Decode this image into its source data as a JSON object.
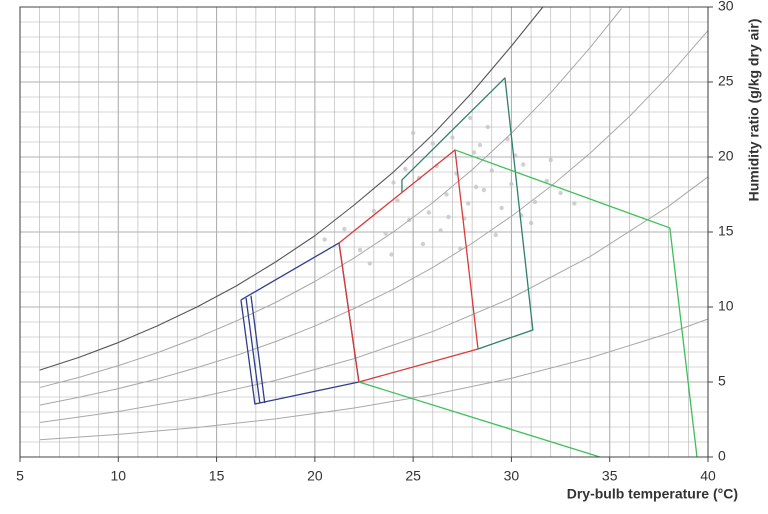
{
  "chart_data": {
    "type": "line",
    "x_label": "Dry-bulb temperature (°C)",
    "y_label": "Humidity ratio (g/kg dry air)",
    "xlim": [
      5,
      40
    ],
    "xticks": [
      5,
      10,
      15,
      20,
      25,
      30,
      35,
      40
    ],
    "ylim": [
      0,
      30
    ],
    "yticks": [
      0,
      5,
      10,
      15,
      20,
      25,
      30
    ],
    "grid": true,
    "minor_grid": 1,
    "grid_color": "#b0b0b0",
    "series": [
      {
        "mode": "markers",
        "color": "#c4c4c4",
        "x": [
          20.5,
          21.5,
          22.3,
          23.0,
          23.6,
          24.2,
          24.8,
          25.3,
          25.8,
          26.2,
          26.7,
          27.2,
          27.6,
          28.1,
          28.6,
          29.0,
          29.5,
          30.0,
          30.6,
          31.2,
          31.8,
          32.5,
          33.2,
          22.8,
          23.9,
          24.6,
          25.5,
          26.4,
          27.0,
          27.8,
          28.4,
          29.2,
          30.2,
          31.0,
          32.0,
          26.0,
          27.4,
          28.8,
          29.8,
          25.0,
          26.8,
          28.2,
          30.5,
          24.0,
          27.9
        ],
        "values": [
          14.5,
          15.2,
          13.8,
          16.4,
          14.9,
          17.1,
          15.8,
          18.6,
          16.3,
          19.4,
          17.5,
          18.9,
          15.9,
          20.3,
          17.8,
          19.1,
          16.6,
          18.2,
          19.5,
          17.0,
          18.4,
          17.6,
          16.9,
          12.9,
          13.5,
          19.2,
          14.2,
          15.1,
          21.3,
          16.9,
          20.8,
          14.8,
          20.1,
          15.6,
          19.8,
          20.9,
          13.9,
          22.0,
          21.2,
          21.6,
          16.0,
          18.0,
          16.1,
          18.3,
          22.6
        ]
      },
      {
        "color": "#555555",
        "width": 1.1,
        "x": [
          6,
          8,
          10,
          12,
          14,
          16,
          18,
          20,
          22,
          24,
          26,
          28,
          30,
          31.6
        ],
        "values": [
          5.79,
          6.64,
          7.63,
          8.75,
          10.0,
          11.4,
          13.0,
          14.75,
          16.8,
          19.0,
          21.5,
          24.3,
          27.4,
          30
        ]
      },
      {
        "color": "#a8a8a8",
        "width": 1,
        "x": [
          6,
          8,
          10,
          12,
          14,
          16,
          18,
          20,
          22,
          24,
          26,
          28,
          30,
          32,
          34,
          35.6
        ],
        "values": [
          4.63,
          5.31,
          6.09,
          6.96,
          7.95,
          9.06,
          10.3,
          11.7,
          13.27,
          15.01,
          16.96,
          19.15,
          21.58,
          24.28,
          27.29,
          29.9
        ]
      },
      {
        "color": "#a8a8a8",
        "width": 1,
        "x": [
          6,
          8,
          10,
          12,
          14,
          16,
          18,
          20,
          22,
          24,
          26,
          28,
          30,
          32,
          34,
          36,
          38,
          40
        ],
        "values": [
          3.46,
          3.98,
          4.56,
          5.21,
          5.96,
          6.77,
          7.69,
          8.73,
          9.9,
          11.19,
          12.64,
          14.25,
          16.05,
          18.04,
          20.25,
          22.7,
          25.42,
          28.43
        ]
      },
      {
        "color": "#a8a8a8",
        "width": 1,
        "x": [
          6,
          10,
          14,
          18,
          22,
          26,
          30,
          34,
          38,
          40
        ],
        "values": [
          2.3,
          3.03,
          3.95,
          5.11,
          6.56,
          8.37,
          10.6,
          13.36,
          16.72,
          18.68
        ]
      },
      {
        "color": "#a8a8a8",
        "width": 1,
        "x": [
          6,
          10,
          14,
          18,
          22,
          26,
          30,
          34,
          38,
          40
        ],
        "values": [
          1.15,
          1.51,
          1.97,
          2.54,
          3.27,
          4.16,
          5.25,
          6.61,
          8.25,
          9.2
        ]
      },
      {
        "color": "#2e3d8f",
        "width": 1.3,
        "x": [
          16.24,
          21.23,
          22.24,
          16.95,
          16.24
        ],
        "values": [
          10.47,
          14.27,
          5.0,
          3.53,
          10.47
        ]
      },
      {
        "color": "#2e3d8f",
        "width": 1.3,
        "x": [
          16.5,
          17.2
        ],
        "values": [
          10.6,
          3.6
        ]
      },
      {
        "color": "#2e3d8f",
        "width": 1.3,
        "x": [
          16.75,
          17.45
        ],
        "values": [
          10.75,
          3.6
        ]
      },
      {
        "color": "#d93a3a",
        "width": 1.3,
        "x": [
          21.23,
          27.13,
          28.3,
          22.24,
          21.23
        ],
        "values": [
          14.27,
          20.47,
          7.2,
          5.0,
          14.27
        ]
      },
      {
        "color": "#2f7f6e",
        "width": 1.3,
        "x": [
          24.43,
          24.43,
          29.67,
          31.09,
          28.3
        ],
        "values": [
          17.67,
          18.47,
          25.27,
          8.47,
          7.2
        ]
      },
      {
        "color": "#3cbf5a",
        "width": 1.3,
        "x": [
          27.13,
          38.06,
          39.44
        ],
        "values": [
          20.47,
          15.27,
          0
        ]
      },
      {
        "color": "#3cbf5a",
        "width": 1.3,
        "x": [
          22.24,
          34.5
        ],
        "values": [
          5.0,
          0
        ]
      }
    ]
  }
}
